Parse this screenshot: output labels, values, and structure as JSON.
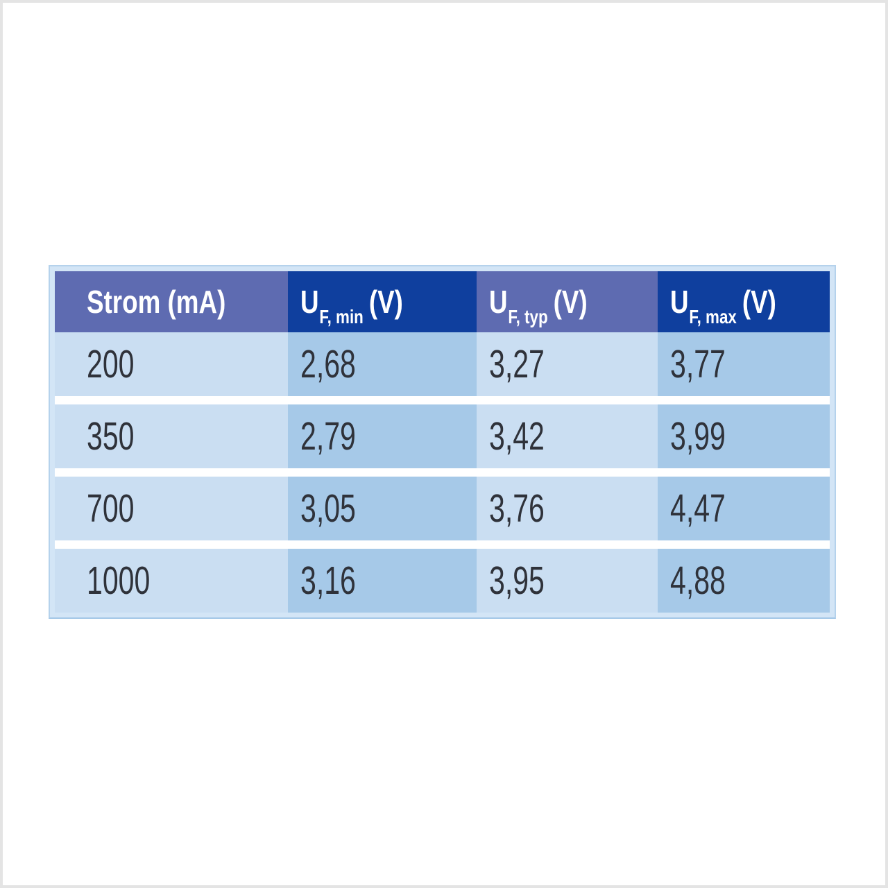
{
  "colors": {
    "canvas_border": "#e4e4e4",
    "frame_background": "#d3e5f6",
    "header_purple": "#5e6bb1",
    "header_dark_blue": "#0f3f9e",
    "cell_light_blue": "#cadef2",
    "cell_medium_blue": "#a6c9e8",
    "row_gap_white": "#ffffff",
    "header_text": "#ffffff",
    "data_text": "#2f323a"
  },
  "table": {
    "headers": [
      {
        "base": "Strom (mA)",
        "sub": "",
        "suffix": ""
      },
      {
        "base": "U",
        "sub": "F, min",
        "suffix": "(V)"
      },
      {
        "base": "U",
        "sub": "F, typ",
        "suffix": "(V)"
      },
      {
        "base": "U",
        "sub": "F, max",
        "suffix": "(V)"
      }
    ],
    "rows": [
      {
        "cells": [
          "200",
          "2,68",
          "3,27",
          "3,77"
        ]
      },
      {
        "cells": [
          "350",
          "2,79",
          "3,42",
          "3,99"
        ]
      },
      {
        "cells": [
          "700",
          "3,05",
          "3,76",
          "4,47"
        ]
      },
      {
        "cells": [
          "1000",
          "3,16",
          "3,95",
          "4,88"
        ]
      }
    ]
  },
  "chart_data": {
    "type": "table",
    "columns": [
      "Strom (mA)",
      "U_F,min (V)",
      "U_F,typ (V)",
      "U_F,max (V)"
    ],
    "rows": [
      [
        200,
        2.68,
        3.27,
        3.77
      ],
      [
        350,
        2.79,
        3.42,
        3.99
      ],
      [
        700,
        3.05,
        3.76,
        4.47
      ],
      [
        1000,
        3.16,
        3.95,
        4.88
      ]
    ],
    "title": "",
    "notes": "decimal comma formatting as displayed; currents in mA, forward voltages in V"
  }
}
